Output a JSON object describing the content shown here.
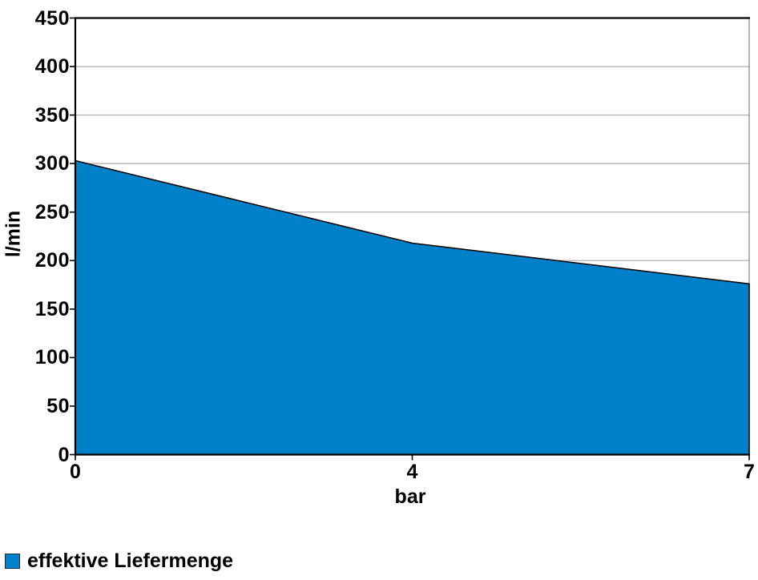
{
  "chart_data": {
    "type": "area",
    "categories": [
      "0",
      "4",
      "7"
    ],
    "series": [
      {
        "name": "effektive Liefermenge",
        "values": [
          303,
          218,
          176
        ]
      }
    ],
    "title": "",
    "xlabel": "bar",
    "ylabel": "l/min",
    "ylim": [
      0,
      450
    ],
    "ytick_step": 50,
    "yticks": [
      "0",
      "50",
      "100",
      "150",
      "200",
      "250",
      "300",
      "350",
      "400",
      "450"
    ],
    "grid": true,
    "legend_position": "bottom-left",
    "colors": {
      "series_fill": "#0080C8",
      "series_stroke": "#000000",
      "grid": "#b2b2b2",
      "axis": "#000000",
      "wall_border": "#9b9b9b",
      "background": "#ffffff",
      "text": "#000000"
    }
  },
  "legend": {
    "items": [
      {
        "label": "effektive Liefermenge",
        "swatch_color": "#0080C8"
      }
    ]
  }
}
